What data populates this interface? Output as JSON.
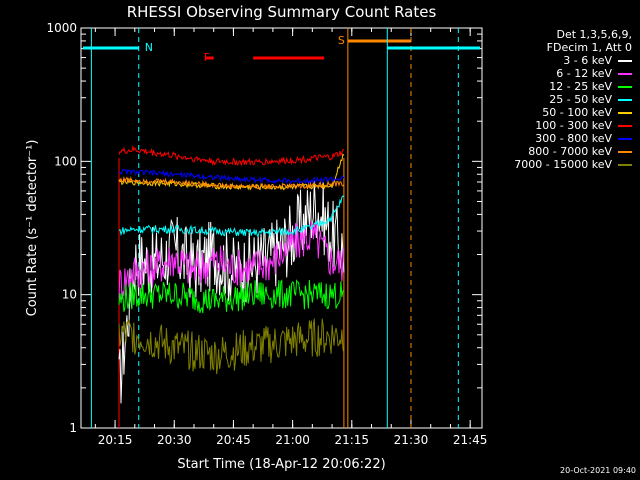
{
  "chart_data": {
    "type": "line",
    "title": "RHESSI Observing Summary Count Rates",
    "xlabel": "Start Time (18-Apr-12 20:06:22)",
    "ylabel": "Count Rate (s⁻¹ detector⁻¹)",
    "yscale": "log",
    "ylim": [
      1,
      1000
    ],
    "xlim": [
      "20:06:22",
      "21:48:00"
    ],
    "y_ticks": [
      "1",
      "10",
      "100",
      "1000"
    ],
    "x_ticks": [
      "20:15",
      "20:30",
      "20:45",
      "21:00",
      "21:15",
      "21:30",
      "21:45"
    ],
    "legend_header": [
      "Det 1,3,5,6,9,",
      "FDecim 1, Att 0"
    ],
    "legend_position": "top-right, outside plot",
    "series": [
      {
        "name": "3 - 6 keV",
        "color": "#ffffff",
        "x": [
          "20:16",
          "20:20",
          "20:25",
          "20:30",
          "20:35",
          "20:40",
          "20:45",
          "20:50",
          "20:55",
          "21:00",
          "21:03",
          "21:06",
          "21:10",
          "21:13"
        ],
        "values": [
          2,
          18,
          17,
          22,
          16,
          20,
          15,
          17,
          20,
          28,
          36,
          48,
          28,
          22
        ]
      },
      {
        "name": "6 - 12 keV",
        "color": "#ff33ff",
        "x": [
          "20:16",
          "20:20",
          "20:25",
          "20:30",
          "20:35",
          "20:40",
          "20:45",
          "20:50",
          "20:55",
          "21:00",
          "21:05",
          "21:10",
          "21:13"
        ],
        "values": [
          12,
          15,
          16,
          19,
          15,
          18,
          16,
          16,
          18,
          24,
          28,
          18,
          17
        ]
      },
      {
        "name": "12 - 25 keV",
        "color": "#00ff00",
        "x": [
          "20:16",
          "20:20",
          "20:30",
          "20:40",
          "20:50",
          "21:00",
          "21:10",
          "21:13"
        ],
        "values": [
          9,
          10,
          10,
          9,
          10,
          10,
          10,
          10
        ]
      },
      {
        "name": "25 - 50 keV",
        "color": "#00ffff",
        "x": [
          "20:16",
          "20:20",
          "20:30",
          "20:40",
          "20:50",
          "21:00",
          "21:05",
          "21:10",
          "21:13"
        ],
        "values": [
          30,
          31,
          31,
          30,
          29,
          30,
          32,
          38,
          55
        ]
      },
      {
        "name": "50 - 100 keV",
        "color": "#ffcc00",
        "x": [
          "20:16",
          "20:30",
          "20:45",
          "21:00",
          "21:10",
          "21:13"
        ],
        "values": [
          70,
          68,
          64,
          64,
          66,
          115
        ]
      },
      {
        "name": "100 - 300 keV",
        "color": "#ff0000",
        "x": [
          "20:16",
          "20:20",
          "20:30",
          "20:40",
          "20:50",
          "21:00",
          "21:10",
          "21:13"
        ],
        "values": [
          118,
          122,
          110,
          100,
          98,
          102,
          108,
          118
        ]
      },
      {
        "name": "300 - 800 keV",
        "color": "#0000ff",
        "x": [
          "20:16",
          "20:30",
          "20:45",
          "21:00",
          "21:13"
        ],
        "values": [
          84,
          80,
          74,
          71,
          74
        ]
      },
      {
        "name": "800 - 7000 keV",
        "color": "#ff8800",
        "x": [
          "20:16",
          "20:30",
          "20:45",
          "21:00",
          "21:13"
        ],
        "values": [
          73,
          70,
          65,
          65,
          68
        ]
      },
      {
        "name": "7000 - 15000 keV",
        "color": "#808000",
        "x": [
          "20:16",
          "20:20",
          "20:30",
          "20:40",
          "20:50",
          "21:00",
          "21:13"
        ],
        "values": [
          5,
          5,
          4,
          3.5,
          4,
          4.5,
          5
        ]
      }
    ],
    "annotations": [
      {
        "label": "N",
        "color": "#00ffff",
        "at": "20:21"
      },
      {
        "label": "F",
        "color": "#ff0000",
        "at": "20:39"
      },
      {
        "label": "S",
        "color": "#ff8800",
        "at": "21:14"
      }
    ]
  },
  "timestamp": "20-Oct-2021 09:40"
}
